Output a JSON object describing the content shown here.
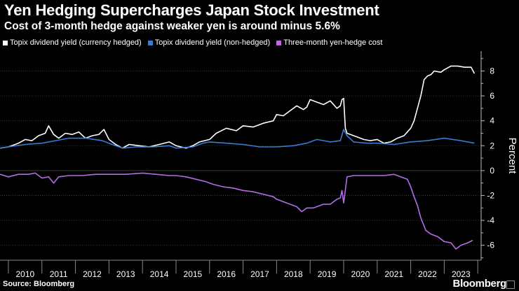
{
  "title": "Yen Hedging Supercharges Japan Stock Investment",
  "subtitle": "Cost of 3-month hedge against weaker yen is around minus 5.6%",
  "source": "Source: Bloomberg",
  "brand": "Bloomberg",
  "colors": {
    "hedged": "#ffffff",
    "nonhedged": "#3a7bd5",
    "cost": "#b56be8",
    "grid": "#3a3a3a"
  },
  "chart_data": {
    "type": "line",
    "title": "Yen Hedging Supercharges Japan Stock Investment",
    "subtitle": "Cost of 3-month hedge against weaker yen is around minus 5.6%",
    "xlabel": "",
    "ylabel": "Percent",
    "xlim": [
      2009.75,
      2024.1
    ],
    "ylim": [
      -7.2,
      9.6
    ],
    "yticks": [
      8,
      6,
      4,
      2,
      0,
      -2,
      -4,
      -6
    ],
    "ytick_labels": [
      "8",
      "6",
      "4",
      "2",
      "0",
      "-2",
      "-4",
      "-6"
    ],
    "x_tick_years": [
      "2010",
      "2011",
      "2012",
      "2013",
      "2014",
      "2015",
      "2016",
      "2017",
      "2018",
      "2019",
      "2020",
      "2021",
      "2022",
      "2023"
    ],
    "legend_position": "top-left",
    "series": [
      {
        "name": "Topix dividend yield (currency hedged)",
        "color": "#ffffff",
        "x": [
          2009.75,
          2010.0,
          2010.3,
          2010.5,
          2010.7,
          2010.9,
          2011.1,
          2011.2,
          2011.35,
          2011.5,
          2011.7,
          2011.9,
          2012.1,
          2012.3,
          2012.5,
          2012.7,
          2012.85,
          2013.0,
          2013.2,
          2013.4,
          2013.6,
          2013.9,
          2014.2,
          2014.5,
          2014.8,
          2015.0,
          2015.3,
          2015.5,
          2015.7,
          2015.85,
          2016.0,
          2016.2,
          2016.5,
          2016.8,
          2017.0,
          2017.3,
          2017.6,
          2017.9,
          2018.0,
          2018.2,
          2018.4,
          2018.6,
          2018.8,
          2018.9,
          2019.0,
          2019.2,
          2019.4,
          2019.6,
          2019.8,
          2019.9,
          2019.95,
          2020.0,
          2020.05,
          2020.1,
          2020.2,
          2020.4,
          2020.6,
          2020.8,
          2021.0,
          2021.2,
          2021.4,
          2021.6,
          2021.8,
          2022.0,
          2022.1,
          2022.2,
          2022.3,
          2022.4,
          2022.5,
          2022.6,
          2022.7,
          2022.9,
          2023.0,
          2023.2,
          2023.4,
          2023.6,
          2023.8,
          2023.9
        ],
        "values": [
          1.8,
          1.9,
          2.2,
          2.5,
          2.4,
          2.8,
          3.0,
          3.6,
          2.9,
          2.6,
          3.0,
          2.9,
          3.1,
          2.6,
          2.8,
          2.9,
          3.3,
          2.5,
          2.1,
          1.8,
          2.1,
          2.0,
          1.9,
          2.1,
          2.3,
          2.0,
          1.8,
          2.0,
          2.3,
          2.4,
          2.5,
          3.0,
          3.4,
          3.2,
          3.6,
          3.5,
          3.8,
          4.0,
          4.5,
          4.4,
          4.8,
          5.2,
          4.9,
          5.1,
          5.7,
          5.5,
          5.3,
          5.6,
          5.0,
          5.2,
          5.7,
          5.8,
          3.4,
          3.0,
          2.9,
          2.7,
          2.5,
          2.4,
          2.5,
          2.2,
          2.3,
          2.6,
          2.8,
          3.4,
          4.0,
          5.0,
          6.0,
          7.3,
          7.6,
          7.7,
          8.0,
          7.9,
          8.1,
          8.4,
          8.4,
          8.3,
          8.3,
          7.8
        ]
      },
      {
        "name": "Topix dividend yield (non-hedged)",
        "color": "#3a7bd5",
        "x": [
          2009.75,
          2010.0,
          2010.5,
          2011.0,
          2011.4,
          2011.8,
          2012.3,
          2012.8,
          2013.0,
          2013.4,
          2013.8,
          2014.3,
          2014.8,
          2015.0,
          2015.5,
          2015.8,
          2016.0,
          2016.5,
          2017.0,
          2017.5,
          2018.0,
          2018.5,
          2018.9,
          2019.2,
          2019.6,
          2019.9,
          2020.0,
          2020.1,
          2020.3,
          2020.7,
          2021.0,
          2021.5,
          2022.0,
          2022.5,
          2023.0,
          2023.5,
          2023.9
        ],
        "values": [
          1.8,
          1.9,
          2.1,
          2.2,
          2.4,
          2.6,
          2.6,
          2.4,
          2.2,
          1.8,
          1.9,
          1.9,
          2.0,
          1.8,
          1.9,
          2.2,
          2.3,
          2.2,
          2.1,
          1.9,
          1.9,
          2.0,
          2.2,
          2.5,
          2.3,
          2.4,
          3.3,
          2.8,
          2.3,
          2.2,
          2.2,
          2.1,
          2.3,
          2.4,
          2.6,
          2.4,
          2.2
        ]
      },
      {
        "name": "Three-month yen-hedge cost",
        "color": "#b56be8",
        "x": [
          2009.75,
          2010.0,
          2010.3,
          2010.6,
          2010.8,
          2011.0,
          2011.2,
          2011.35,
          2011.5,
          2011.8,
          2012.2,
          2012.6,
          2013.0,
          2013.5,
          2014.0,
          2014.4,
          2014.8,
          2015.0,
          2015.3,
          2015.6,
          2015.9,
          2016.1,
          2016.4,
          2016.7,
          2017.0,
          2017.3,
          2017.6,
          2017.9,
          2018.0,
          2018.3,
          2018.6,
          2018.75,
          2018.9,
          2019.1,
          2019.4,
          2019.6,
          2019.8,
          2019.9,
          2019.95,
          2020.0,
          2020.1,
          2020.3,
          2020.6,
          2020.9,
          2021.2,
          2021.5,
          2021.7,
          2021.9,
          2022.0,
          2022.1,
          2022.2,
          2022.3,
          2022.45,
          2022.6,
          2022.8,
          2023.0,
          2023.2,
          2023.35,
          2023.5,
          2023.7,
          2023.85
        ],
        "values": [
          -0.3,
          -0.5,
          -0.3,
          -0.3,
          -0.2,
          -0.6,
          -0.5,
          -1.0,
          -0.5,
          -0.4,
          -0.4,
          -0.3,
          -0.3,
          -0.3,
          -0.2,
          -0.3,
          -0.4,
          -0.4,
          -0.5,
          -0.7,
          -0.9,
          -1.1,
          -1.3,
          -1.4,
          -1.6,
          -1.7,
          -1.9,
          -2.1,
          -2.3,
          -2.6,
          -2.9,
          -3.3,
          -3.0,
          -3.0,
          -2.7,
          -2.7,
          -2.3,
          -2.2,
          -1.6,
          -2.6,
          -0.5,
          -0.4,
          -0.4,
          -0.4,
          -0.4,
          -0.3,
          -0.5,
          -0.7,
          -1.3,
          -2.1,
          -2.8,
          -3.8,
          -4.8,
          -5.1,
          -5.3,
          -5.7,
          -5.8,
          -6.3,
          -6.0,
          -5.8,
          -5.6
        ]
      }
    ]
  }
}
